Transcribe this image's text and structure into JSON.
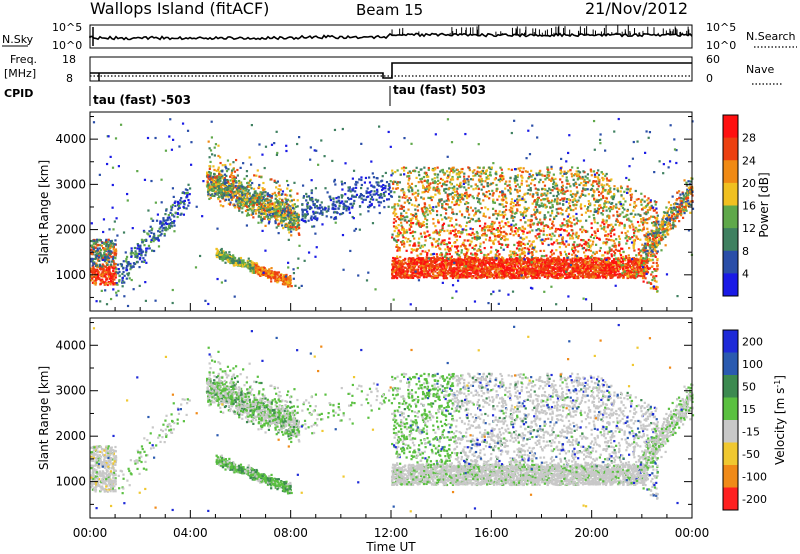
{
  "header": {
    "station": "Wallops Island (fitACF)",
    "beam": "Beam 15",
    "date": "21/Nov/2012"
  },
  "top_panel": {
    "nsky_label": "N.Sky",
    "nsky_ticks": [
      "10^5",
      "10^0"
    ],
    "nsearch_label": "N.Search",
    "nsearch_ticks": [
      "10^5",
      "10^0"
    ],
    "freq_label": "Freq.",
    "freq_unit": "[MHz]",
    "freq_ticks": [
      "18",
      "8"
    ],
    "nave_label": "Nave",
    "nave_ticks": [
      "60",
      "0"
    ],
    "cpid_label": "CPID",
    "cpid_segments": [
      {
        "label": "tau (fast) -503",
        "start_hour": 0
      },
      {
        "label": "tau (fast) 503",
        "start_hour": 12
      }
    ]
  },
  "chart_data": [
    {
      "type": "heatmap",
      "name": "power",
      "ylabel": "Slant Range [km]",
      "yticks": [
        1000,
        2000,
        3000,
        4000
      ],
      "ylim": [
        200,
        4600
      ],
      "xlim_hours": [
        0,
        24
      ],
      "colorbar": {
        "label": "Power [dB]",
        "ticks": [
          "4",
          "8",
          "12",
          "16",
          "20",
          "24",
          "28"
        ],
        "colors": [
          "#1a1ae6",
          "#2a4ea8",
          "#3f8060",
          "#5fa84a",
          "#f0c020",
          "#f08a14",
          "#ec4010",
          "#ff1010"
        ]
      },
      "features": [
        {
          "hours": [
            0.0,
            1.0
          ],
          "range_km": [
            800,
            1800
          ],
          "level": "high"
        },
        {
          "hours": [
            4.5,
            8.3
          ],
          "range_km": [
            1500,
            3400
          ],
          "level": "medium"
        },
        {
          "hours": [
            5.0,
            8.0
          ],
          "range_km": [
            700,
            1600
          ],
          "level": "medium"
        },
        {
          "hours": [
            12.0,
            22.0
          ],
          "range_km": [
            900,
            1400
          ],
          "level": "very high"
        },
        {
          "hours": [
            12.0,
            22.5
          ],
          "range_km": [
            1400,
            3400
          ],
          "level": "high"
        }
      ]
    },
    {
      "type": "heatmap",
      "name": "velocity",
      "ylabel": "Slant Range [km]",
      "yticks": [
        1000,
        2000,
        3000,
        4000
      ],
      "ylim": [
        200,
        4600
      ],
      "xlim_hours": [
        0,
        24
      ],
      "xlabel": "Time UT",
      "xticks": [
        "00:00",
        "04:00",
        "08:00",
        "12:00",
        "16:00",
        "20:00",
        "00:00"
      ],
      "colorbar": {
        "label": "Velocity [m s",
        "label_sup": "-1",
        "label_end": "]",
        "ticks": [
          "200",
          "100",
          "50",
          "15",
          "-15",
          "-50",
          "-100",
          "-200"
        ],
        "colors": [
          "#1e2ad8",
          "#2a5ab0",
          "#3c8a50",
          "#5ac040",
          "#c8c8c8",
          "#f0c830",
          "#f08a18",
          "#ff2020"
        ]
      },
      "features": [
        {
          "hours": [
            4.5,
            8.3
          ],
          "range_km": [
            1500,
            3400
          ],
          "level": "ground scatter and low velocity"
        },
        {
          "hours": [
            5.0,
            8.0
          ],
          "range_km": [
            700,
            1600
          ],
          "level": "low velocity"
        },
        {
          "hours": [
            12.0,
            22.5
          ],
          "range_km": [
            900,
            3400
          ],
          "level": "ground scatter"
        }
      ]
    }
  ]
}
